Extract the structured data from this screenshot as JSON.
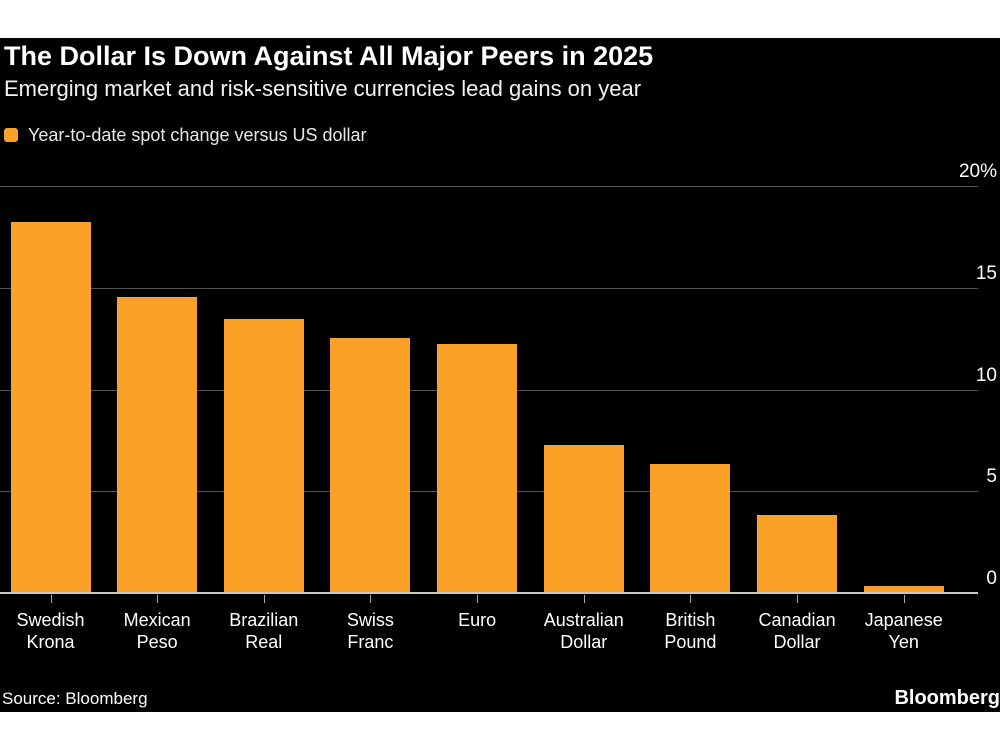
{
  "colors": {
    "page_background": "#ffffff",
    "canvas_background": "#000000",
    "bar_color": "#FBA127",
    "gridline_color": "#525252",
    "zero_axis_color": "#c9c9c9",
    "tick_color": "#a9a9a9",
    "text_color": "#ffffff"
  },
  "footer": {
    "source": "Source: Bloomberg",
    "logo": "Bloomberg"
  },
  "chart_data": {
    "type": "bar",
    "title": "The Dollar Is Down Against All Major Peers in 2025",
    "subtitle": "Emerging market and risk-sensitive currencies lead gains on year",
    "legend": "Year-to-date spot change versus US dollar",
    "legend_position": "top-left",
    "categories": [
      "Swedish Krona",
      "Mexican Peso",
      "Brazilian Real",
      "Swiss Franc",
      "Euro",
      "Australian Dollar",
      "British Pound",
      "Canadian Dollar",
      "Japanese Yen"
    ],
    "values": [
      18.2,
      14.5,
      13.4,
      12.5,
      12.2,
      7.2,
      6.3,
      3.8,
      0.3
    ],
    "unit": "%",
    "xlabel": "",
    "ylabel": "Year-to-date spot change versus US dollar (%)",
    "ylim": [
      0,
      20
    ],
    "y_ticks": [
      {
        "value": 20,
        "label": "20%"
      },
      {
        "value": 15,
        "label": "15"
      },
      {
        "value": 10,
        "label": "10"
      },
      {
        "value": 5,
        "label": "5"
      },
      {
        "value": 0,
        "label": "0"
      }
    ],
    "grid": "horizontal",
    "axis_side": "right"
  }
}
